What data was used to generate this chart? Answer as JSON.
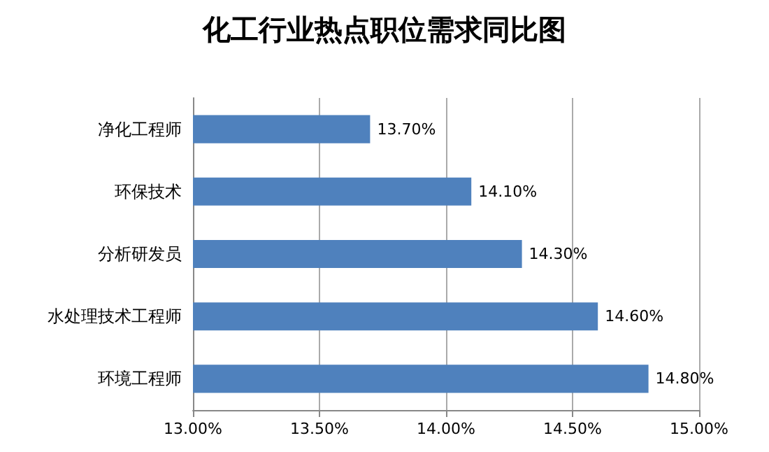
{
  "chart_data": {
    "type": "bar",
    "orientation": "horizontal",
    "title": "化工行业热点职位需求同比图",
    "categories": [
      "净化工程师",
      "环保技术",
      "分析研发员",
      "水处理技术工程师",
      "环境工程师"
    ],
    "values": [
      13.7,
      14.1,
      14.3,
      14.6,
      14.8
    ],
    "value_labels": [
      "13.70%",
      "14.10%",
      "14.30%",
      "14.60%",
      "14.80%"
    ],
    "color": "#4f81bd",
    "xlim": [
      13,
      15
    ],
    "xticks": [
      {
        "value": 13,
        "label": "13.00%"
      },
      {
        "value": 13.5,
        "label": "13.50%"
      },
      {
        "value": 14,
        "label": "14.00%"
      },
      {
        "value": 14.5,
        "label": "14.50%"
      },
      {
        "value": 15,
        "label": "15.00%"
      }
    ],
    "grid": "x"
  }
}
